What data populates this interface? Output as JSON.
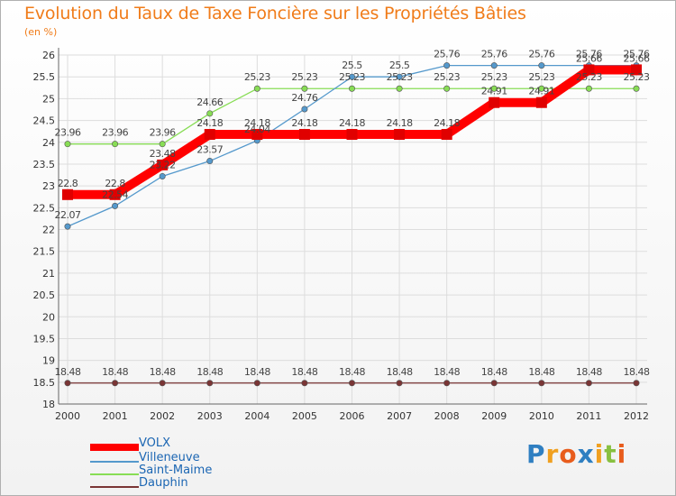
{
  "title": "Evolution du Taux de Taxe Foncière sur les Propriétés Bâties",
  "unit_label": "(en %)",
  "brand": "Proxiti",
  "chart_data": {
    "type": "line",
    "title": "Evolution du Taux de Taxe Foncière sur les Propriétés Bâties",
    "ylabel": "(en %)",
    "xlabel": "",
    "ylim": [
      18,
      26
    ],
    "y_ticks": [
      "18",
      "18.5",
      "19",
      "19.5",
      "20",
      "20.5",
      "21",
      "21.5",
      "22",
      "22.5",
      "23",
      "23.5",
      "24",
      "24.5",
      "25",
      "25.5",
      "26"
    ],
    "categories": [
      "2000",
      "2001",
      "2002",
      "2003",
      "2004",
      "2005",
      "2006",
      "2007",
      "2008",
      "2009",
      "2010",
      "2011",
      "2012"
    ],
    "series": [
      {
        "name": "VOLX",
        "color": "#ff0000",
        "values": [
          22.8,
          22.8,
          23.48,
          24.18,
          24.18,
          24.18,
          24.18,
          24.18,
          24.18,
          24.91,
          24.91,
          25.66,
          25.66
        ],
        "labels": [
          "22.8",
          "22.8",
          "23.48",
          "24.18",
          "24.18",
          "24.18",
          "24.18",
          "24.18",
          "24.18",
          "24.91",
          "24.91",
          "25.66",
          "25.66"
        ]
      },
      {
        "name": "Villeneuve",
        "color": "#5599cc",
        "values": [
          22.07,
          22.54,
          23.22,
          23.57,
          24.04,
          24.76,
          25.5,
          25.5,
          25.76,
          25.76,
          25.76,
          25.76,
          25.76
        ],
        "labels": [
          "22.07",
          "22.54",
          "23.22",
          "23.57",
          "24.04",
          "24.76",
          "25.5",
          "25.5",
          "25.76",
          "25.76",
          "25.76",
          "25.76",
          "25.76"
        ]
      },
      {
        "name": "Saint-Maime",
        "color": "#88dd55",
        "values": [
          23.96,
          23.96,
          23.96,
          24.66,
          25.23,
          25.23,
          25.23,
          25.23,
          25.23,
          25.23,
          25.23,
          25.23,
          25.23
        ],
        "labels": [
          "23.96",
          "23.96",
          "23.96",
          "24.66",
          "25.23",
          "25.23",
          "25.23",
          "25.23",
          "25.23",
          "25.23",
          "25.23",
          "25.23",
          "25.23"
        ]
      },
      {
        "name": "Dauphin",
        "color": "#7a3535",
        "values": [
          18.48,
          18.48,
          18.48,
          18.48,
          18.48,
          18.48,
          18.48,
          18.48,
          18.48,
          18.48,
          18.48,
          18.48,
          18.48
        ],
        "labels": [
          "18.48",
          "18.48",
          "18.48",
          "18.48",
          "18.48",
          "18.48",
          "18.48",
          "18.48",
          "18.48",
          "18.48",
          "18.48",
          "18.48",
          "18.48"
        ]
      }
    ],
    "legend_position": "bottom-left",
    "grid": true
  }
}
